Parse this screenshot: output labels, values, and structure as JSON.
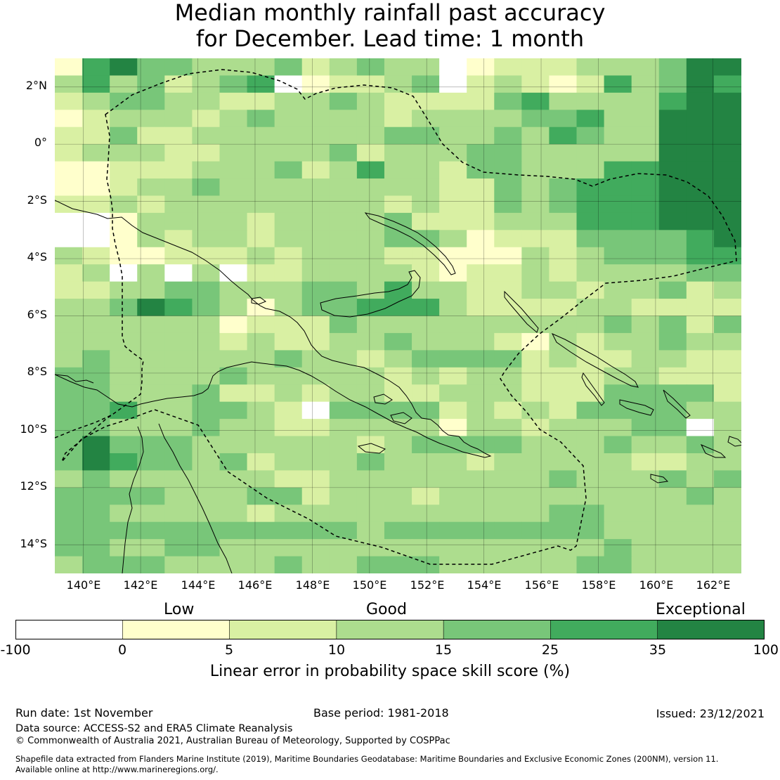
{
  "title": {
    "line1": "Median monthly rainfall past accuracy",
    "line2": "for December. Lead time: 1 month"
  },
  "map": {
    "lat_labels": [
      "2°N",
      "0°",
      "2°S",
      "4°S",
      "6°S",
      "8°S",
      "10°S",
      "12°S",
      "14°S"
    ],
    "lon_labels": [
      "140°E",
      "142°E",
      "144°E",
      "146°E",
      "148°E",
      "150°E",
      "152°E",
      "154°E",
      "156°E",
      "158°E",
      "160°E",
      "162°E"
    ],
    "extent": {
      "lon_min": 139.0,
      "lon_max": 163.0,
      "lat_min": -15.0,
      "lat_max": 3.0
    },
    "cell_size_deg": 0.8,
    "grid_class_codes": [
      "1564433342343301222333466",
      "3534234501223402321253465",
      "2344332233432222453333566",
      "1233323433332333344533666",
      "2242233333334433435433666",
      "2333223333423334433333666",
      "1122233342353324433355666",
      "1123343333333322434555666",
      "2232333333332322434555666",
      "0013333233334222333555666",
      "0013233233334431222444456",
      "3211222323332211132344455",
      "2303030223333212232333344",
      "2233443334435332233233423",
      "3346543134455532222332222",
      "3333331222433333333343424",
      "3333332322334333213233433",
      "3433333343323444423223322",
      "4433334333332323322233222",
      "4433342232332233322244442",
      "4453344320444423232444433",
      "4433343322333313323334403",
      "4644433333323444433343343",
      "4654434233343332333332233",
      "3433333322333333334333434",
      "4444333442333233333333343",
      "4433333233333333334433333",
      "4444444444434444444433333",
      "4433443333333333333343333",
      "3444333343344433333443333"
    ],
    "eez_label": "dashed maritime boundaries"
  },
  "colorbar": {
    "categories": [
      "Low",
      "Good",
      "Exceptional"
    ],
    "ticks": [
      "-100",
      "0",
      "5",
      "10",
      "15",
      "25",
      "35",
      "100"
    ],
    "colors": [
      "#ffffff",
      "#ffffcc",
      "#d9f0a3",
      "#addd8e",
      "#78c679",
      "#41ab5d",
      "#238443"
    ],
    "label": "Linear error in probability space skill score (%)"
  },
  "footer": {
    "run_date": "Run date: 1st November",
    "base_period": "Base period: 1981-2018",
    "issued": "Issued: 23/12/2021",
    "data_source": "Data source: ACCESS-S2 and ERA5 Climate Reanalysis",
    "copyright": "© Commonwealth of Australia 2021, Australian Bureau of Meteorology, Supported by COSPPac",
    "shapefile_line1": "Shapefile data extracted from Flanders Marine Institute (2019), Maritime Boundaries Geodatabase: Maritime Boundaries and Exclusive Economic Zones (200NM), version 11.",
    "shapefile_line2": "Available online at http://www.marineregions.org/."
  }
}
